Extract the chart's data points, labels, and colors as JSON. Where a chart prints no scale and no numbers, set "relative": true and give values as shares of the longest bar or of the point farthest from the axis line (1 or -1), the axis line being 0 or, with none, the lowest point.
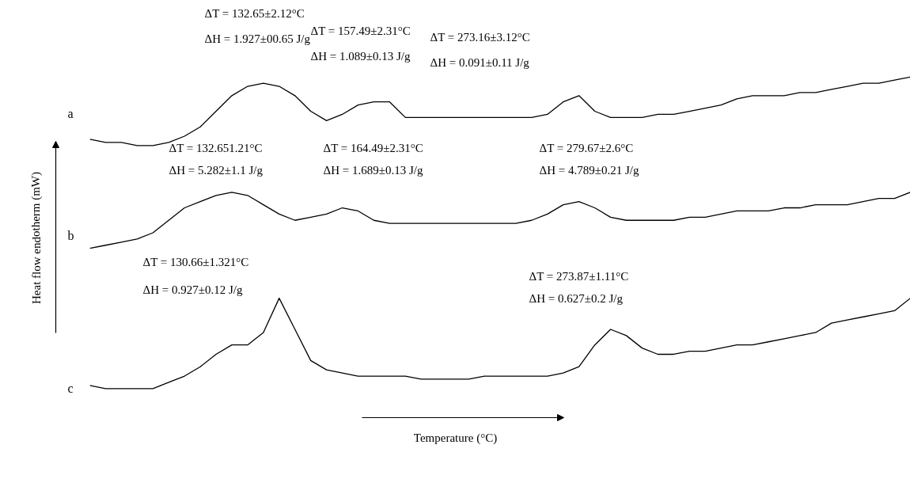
{
  "chart_data": {
    "type": "line",
    "relative": true,
    "xlabel": "Temperature (°C)",
    "ylabel": "Heat flow endotherm (mW)",
    "categories": [
      null,
      null,
      null,
      null,
      null,
      null,
      null,
      null,
      null,
      null,
      null,
      null,
      null,
      null,
      null,
      null,
      null,
      null,
      null,
      null,
      null,
      null,
      null,
      null,
      null,
      null,
      null,
      null,
      null,
      null,
      null,
      null,
      null,
      null,
      null,
      null,
      null,
      null,
      null,
      null,
      null,
      null,
      null,
      null,
      null,
      null,
      null,
      null,
      null,
      null,
      null,
      null,
      null
    ],
    "series": [
      {
        "name": "a",
        "color": "#000000",
        "values": [
          0.8,
          0.79,
          0.79,
          0.78,
          0.78,
          0.79,
          0.81,
          0.84,
          0.89,
          0.94,
          0.97,
          0.98,
          0.97,
          0.94,
          0.89,
          0.86,
          0.88,
          0.91,
          0.92,
          0.92,
          0.87,
          0.87,
          0.87,
          0.87,
          0.87,
          0.87,
          0.87,
          0.87,
          0.87,
          0.88,
          0.92,
          0.94,
          0.89,
          0.87,
          0.87,
          0.87,
          0.88,
          0.88,
          0.89,
          0.9,
          0.91,
          0.93,
          0.94,
          0.94,
          0.94,
          0.95,
          0.95,
          0.96,
          0.97,
          0.98,
          0.98,
          0.99,
          1.0
        ]
      },
      {
        "name": "b",
        "color": "#000000",
        "values": [
          0.45,
          0.46,
          0.47,
          0.48,
          0.5,
          0.54,
          0.58,
          0.6,
          0.62,
          0.63,
          0.62,
          0.59,
          0.56,
          0.54,
          0.55,
          0.56,
          0.58,
          0.57,
          0.54,
          0.53,
          0.53,
          0.53,
          0.53,
          0.53,
          0.53,
          0.53,
          0.53,
          0.53,
          0.54,
          0.56,
          0.59,
          0.6,
          0.58,
          0.55,
          0.54,
          0.54,
          0.54,
          0.54,
          0.55,
          0.55,
          0.56,
          0.57,
          0.57,
          0.57,
          0.58,
          0.58,
          0.59,
          0.59,
          0.59,
          0.6,
          0.61,
          0.61,
          0.63
        ]
      },
      {
        "name": "c",
        "color": "#000000",
        "values": [
          0.01,
          0.0,
          0.0,
          0.0,
          0.0,
          0.02,
          0.04,
          0.07,
          0.11,
          0.14,
          0.14,
          0.18,
          0.29,
          0.19,
          0.09,
          0.06,
          0.05,
          0.04,
          0.04,
          0.04,
          0.04,
          0.03,
          0.03,
          0.03,
          0.03,
          0.04,
          0.04,
          0.04,
          0.04,
          0.04,
          0.05,
          0.07,
          0.14,
          0.19,
          0.17,
          0.13,
          0.11,
          0.11,
          0.12,
          0.12,
          0.13,
          0.14,
          0.14,
          0.15,
          0.16,
          0.17,
          0.18,
          0.21,
          0.22,
          0.23,
          0.24,
          0.25,
          0.29
        ]
      }
    ],
    "annotations": [
      "ΔT = 132.65±2.12°C",
      "ΔH = 1.927±00.65 J/g",
      "ΔT = 157.49±2.31°C",
      "ΔH = 1.089±0.13 J/g",
      "ΔT = 273.16±3.12°C",
      "ΔH = 0.091±0.11 J/g",
      "ΔT = 132.651.21°C",
      "ΔH = 5.282±1.1 J/g",
      "ΔT = 164.49±2.31°C",
      "ΔH = 1.689±0.13 J/g",
      "ΔT = 279.67±2.6°C",
      "ΔH = 4.789±0.21 J/g",
      "ΔT = 130.66±1.321°C",
      "ΔH = 0.927±0.12 J/g",
      "ΔT = 273.87±1.11°C",
      "ΔH = 0.627±0.2 J/g"
    ]
  }
}
